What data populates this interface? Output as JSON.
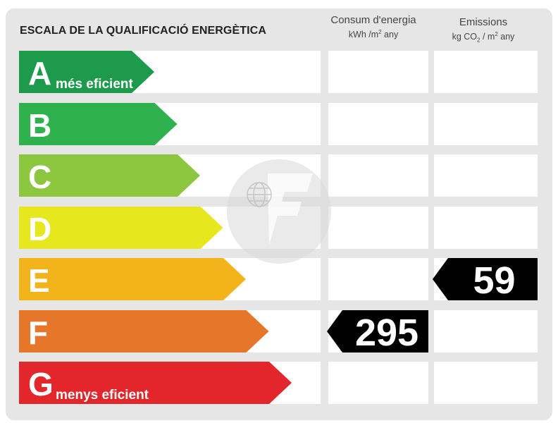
{
  "title": "ESCALA DE LA QUALIFICACIÓ ENERGÈTICA",
  "columns": {
    "consumption": {
      "label": "Consum d'energia",
      "unit_pre": "kWh /m",
      "unit_sup": "2",
      "unit_post": "  any"
    },
    "emissions": {
      "label": "Emissions",
      "unit_pre": "kg CO",
      "unit_sub": "2",
      "unit_mid": " / m",
      "unit_sup": "2",
      "unit_post": "  any"
    }
  },
  "chart_data": {
    "type": "table",
    "classes": [
      {
        "letter": "A",
        "subtitle": "més eficient",
        "color": "#1d9a4c"
      },
      {
        "letter": "B",
        "subtitle": "",
        "color": "#2fb14d"
      },
      {
        "letter": "C",
        "subtitle": "",
        "color": "#8dc63f"
      },
      {
        "letter": "D",
        "subtitle": "",
        "color": "#e6e81d"
      },
      {
        "letter": "E",
        "subtitle": "",
        "color": "#f2b31b"
      },
      {
        "letter": "F",
        "subtitle": "",
        "color": "#e6762a"
      },
      {
        "letter": "G",
        "subtitle": "menys eficient",
        "color": "#e2262b"
      }
    ],
    "consumption": {
      "class": "F",
      "value": "295"
    },
    "emissions": {
      "class": "E",
      "value": "59"
    }
  }
}
